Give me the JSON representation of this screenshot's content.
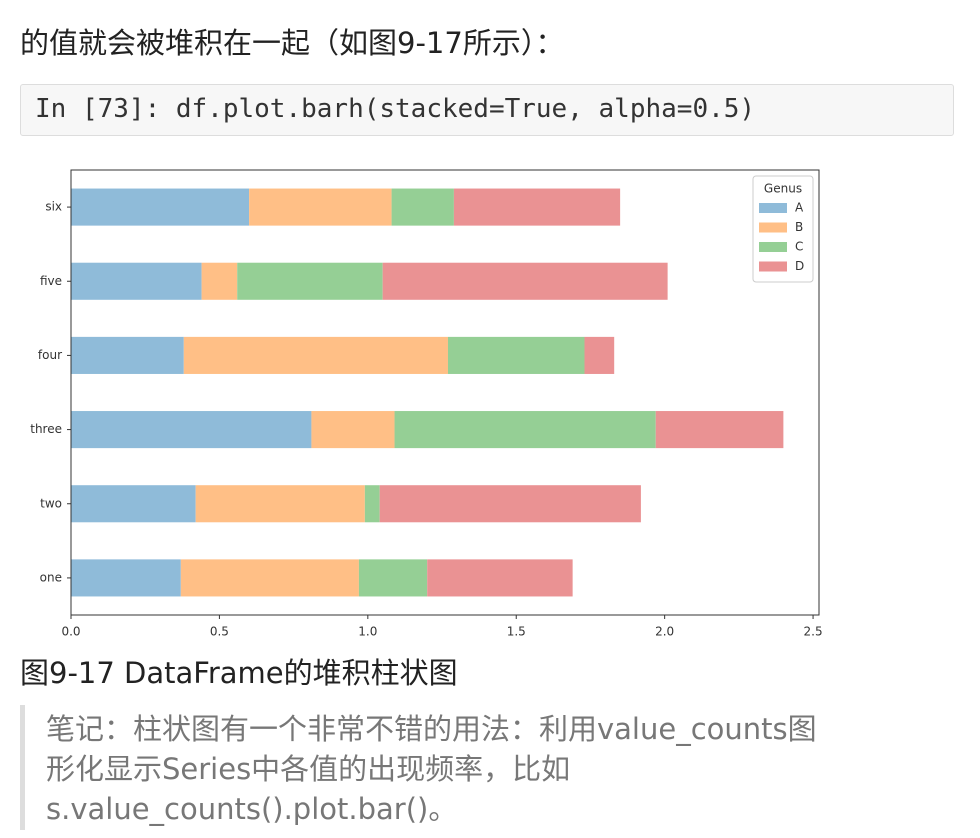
{
  "intro": "的值就会被堆积在一起（如图9-17所示）：",
  "code": "In [73]: df.plot.barh(stacked=True, alpha=0.5)",
  "chart_data": {
    "type": "barh-stacked",
    "categories": [
      "one",
      "two",
      "three",
      "four",
      "five",
      "six"
    ],
    "series": [
      {
        "name": "A",
        "color": "#8fbbd9",
        "values": [
          0.37,
          0.42,
          0.81,
          0.38,
          0.44,
          0.6
        ]
      },
      {
        "name": "B",
        "color": "#ffbf86",
        "values": [
          0.6,
          0.57,
          0.28,
          0.89,
          0.12,
          0.48
        ]
      },
      {
        "name": "C",
        "color": "#95cf95",
        "values": [
          0.23,
          0.05,
          0.88,
          0.46,
          0.49,
          0.21
        ]
      },
      {
        "name": "D",
        "color": "#ea9293",
        "values": [
          0.49,
          0.88,
          0.43,
          0.1,
          0.96,
          0.56
        ]
      }
    ],
    "legend_title": "Genus",
    "legend": "upper right",
    "xlim": [
      0,
      2.52
    ],
    "xticks": [
      {
        "value": 0,
        "label": "0.0"
      },
      0.5,
      {
        "value": 1,
        "label": "1.0"
      },
      1.5,
      {
        "value": 2,
        "label": "2.0"
      },
      2.5
    ]
  },
  "caption": "图9-17 DataFrame的堆积柱状图",
  "note": [
    "笔记：柱状图有一个非常不错的用法：利用value_counts图",
    "形化显示Series中各值的出现频率，比如",
    "s.value_counts().plot.bar()。"
  ]
}
